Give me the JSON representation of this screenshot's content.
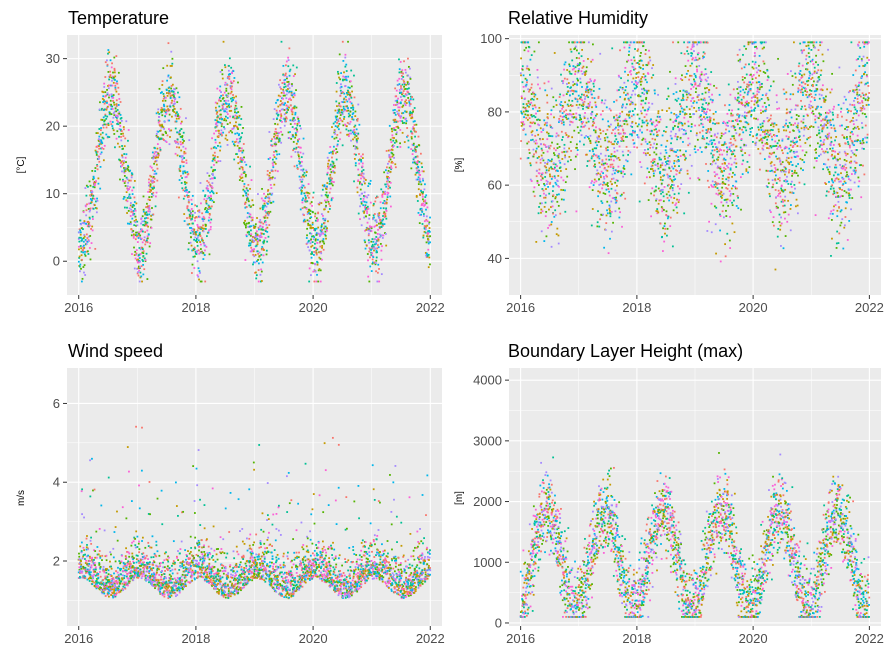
{
  "chart_data": [
    {
      "type": "scatter",
      "title": "Temperature",
      "xlabel": "",
      "ylabel": "[°C]",
      "xlim": [
        2015.8,
        2022.2
      ],
      "ylim": [
        -5,
        33.5
      ],
      "x_ticks": [
        2016,
        2018,
        2020,
        2022
      ],
      "y_ticks": [
        0,
        10,
        20,
        30
      ],
      "grid": true,
      "legend": "none",
      "pattern": {
        "kind": "seasonal",
        "mean": 13.5,
        "amplitude": 11,
        "peak_phase": 0.55,
        "noise": 3.0,
        "clip": [
          -3,
          32.5
        ]
      }
    },
    {
      "type": "scatter",
      "title": "Relative Humidity",
      "xlabel": "",
      "ylabel": "[%]",
      "xlim": [
        2015.8,
        2022.2
      ],
      "ylim": [
        30,
        101
      ],
      "x_ticks": [
        2016,
        2018,
        2020,
        2022
      ],
      "y_ticks": [
        40,
        60,
        80,
        100
      ],
      "grid": true,
      "legend": "none",
      "pattern": {
        "kind": "seasonal",
        "mean": 75,
        "amplitude": 12,
        "peak_phase": 0.0,
        "noise": 10.0,
        "clip": [
          34,
          99
        ]
      }
    },
    {
      "type": "scatter",
      "title": "Wind speed",
      "xlabel": "",
      "ylabel": "m/s",
      "xlim": [
        2015.8,
        2022.2
      ],
      "ylim": [
        0.35,
        6.9
      ],
      "x_ticks": [
        2016,
        2018,
        2020,
        2022
      ],
      "y_ticks": [
        2,
        4,
        6
      ],
      "grid": true,
      "legend": "none",
      "pattern": {
        "kind": "skewed",
        "mean": 1.55,
        "amplitude": 0.25,
        "peak_phase": 0.05,
        "noise": 0.5,
        "clip": [
          0.5,
          6.6
        ]
      }
    },
    {
      "type": "scatter",
      "title": "Boundary Layer Height (max)",
      "xlabel": "",
      "ylabel": "[m]",
      "xlim": [
        2015.8,
        2022.2
      ],
      "ylim": [
        -50,
        4200
      ],
      "x_ticks": [
        2016,
        2018,
        2020,
        2022
      ],
      "y_ticks": [
        0,
        1000,
        2000,
        3000,
        4000
      ],
      "grid": true,
      "legend": "none",
      "pattern": {
        "kind": "seasonal",
        "mean": 1050,
        "amplitude": 800,
        "peak_phase": 0.45,
        "noise": 320,
        "clip": [
          100,
          4100
        ]
      }
    }
  ],
  "series_colors": [
    "#F8766D",
    "#C49A00",
    "#53B400",
    "#00C094",
    "#00B6EB",
    "#A58AFF",
    "#FB61D7"
  ]
}
